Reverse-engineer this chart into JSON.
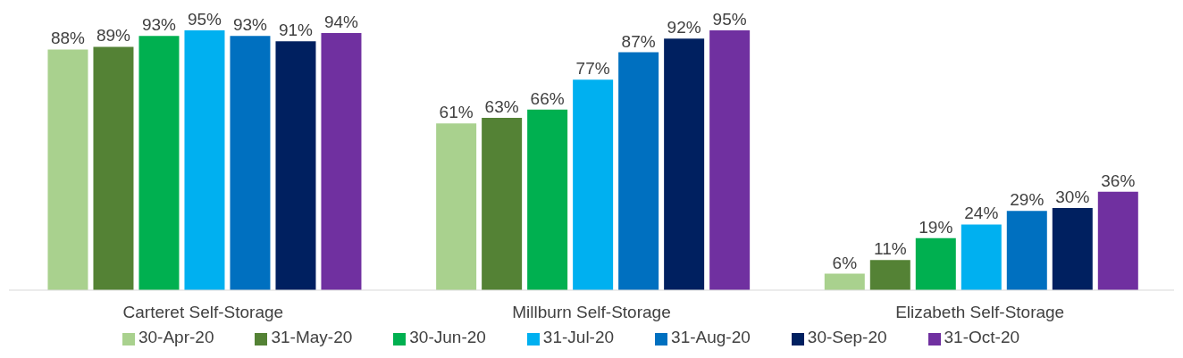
{
  "chart_data": {
    "type": "bar",
    "categories": [
      "Carteret Self-Storage",
      "Millburn Self-Storage",
      "Elizabeth Self-Storage"
    ],
    "legend": "bottom",
    "grid": false,
    "series": [
      {
        "name": "30-Apr-20",
        "color": "#a9d18e",
        "values": [
          88,
          61,
          6
        ],
        "value_labels": [
          "88%",
          "61%",
          "6%"
        ]
      },
      {
        "name": "31-May-20",
        "color": "#548235",
        "values": [
          89,
          63,
          11
        ],
        "value_labels": [
          "89%",
          "63%",
          "11%"
        ]
      },
      {
        "name": "30-Jun-20",
        "color": "#00b050",
        "values": [
          93,
          66,
          19
        ],
        "value_labels": [
          "93%",
          "66%",
          "19%"
        ]
      },
      {
        "name": "31-Jul-20",
        "color": "#00b0f0",
        "values": [
          95,
          77,
          24
        ],
        "value_labels": [
          "95%",
          "77%",
          "24%"
        ]
      },
      {
        "name": "31-Aug-20",
        "color": "#0070c0",
        "values": [
          93,
          87,
          29
        ],
        "value_labels": [
          "93%",
          "87%",
          "29%"
        ]
      },
      {
        "name": "30-Sep-20",
        "color": "#002060",
        "values": [
          91,
          92,
          30
        ],
        "value_labels": [
          "91%",
          "92%",
          "30%"
        ]
      },
      {
        "name": "31-Oct-20",
        "color": "#7030a0",
        "values": [
          94,
          95,
          36
        ],
        "value_labels": [
          "94%",
          "95%",
          "36%"
        ]
      }
    ]
  }
}
